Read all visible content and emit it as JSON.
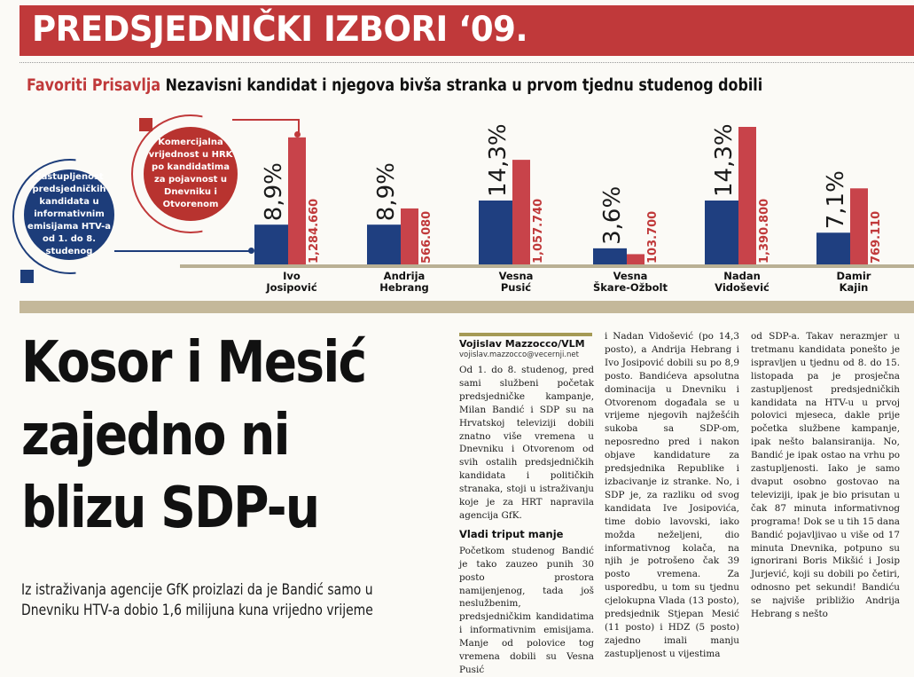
{
  "banner": {
    "title": "PREDSJEDNIČKI IZBORI ‘09."
  },
  "subhead": {
    "kicker": "Favoriti Prisavlja",
    "text": "Nezavisni kandidat i njegova bivša stranka u prvom tjednu studenog dobili"
  },
  "legend": {
    "red": "Komercijalna vrijednost u HRK po kandidatima za pojavnost u Dnevniku i Otvorenom",
    "red_lines": [
      "Komercijalna",
      "vrijednost u HRK",
      "po kandidatima",
      "za pojavnost u",
      "Dnevniku i",
      "Otvorenom"
    ],
    "blue": "Zastupljenost predsjedničkih kandidata u informativnim emisijama HTV-a od 1. do 8. studenog",
    "blue_lines": [
      "Zastupljenost",
      "predsjedničkih",
      "kandidata u",
      "informativnim",
      "emisijama HTV-a",
      "od 1. do 8.",
      "studenog"
    ]
  },
  "colors": {
    "red": "#c0393a",
    "blue": "#1d3d7a",
    "bar_red": "#c8434a",
    "bar_blue": "#1f3f80"
  },
  "chart_data": {
    "type": "bar",
    "title": "",
    "categories": [
      "Ivo Josipović",
      "Andrija Hebrang",
      "Vesna Pusić",
      "Vesna Škare-Ožbolt",
      "Nadan Vidošević",
      "Damir Kajin"
    ],
    "category_lines": [
      [
        "Ivo",
        "Josipović"
      ],
      [
        "Andrija",
        "Hebrang"
      ],
      [
        "Vesna",
        "Pusić"
      ],
      [
        "Vesna",
        "Škare-Ožbolt"
      ],
      [
        "Nadan",
        "Vidošević"
      ],
      [
        "Damir",
        "Kajin"
      ]
    ],
    "series": [
      {
        "name": "Zastupljenost predsjedničkih kandidata u informativnim emisijama HTV-a od 1. do 8. studenog",
        "color": "#1f3f80",
        "values": [
          8.9,
          8.9,
          14.3,
          3.6,
          14.3,
          7.1
        ],
        "labels": [
          "8,9%",
          "8,9%",
          "14,3%",
          "3,6%",
          "14,3%",
          "7,1%"
        ]
      },
      {
        "name": "Komercijalna vrijednost u HRK po kandidatima za pojavnost u Dnevniku i Otvorenom",
        "color": "#c8434a",
        "values": [
          1284660,
          566080,
          1057740,
          103700,
          1390800,
          769110
        ],
        "labels": [
          "1,284.660",
          "566.080",
          "1,057.740",
          "103.700",
          "1,390.800",
          "769.110"
        ]
      }
    ],
    "xlabel": "",
    "ylabel": "",
    "ylim_percent": [
      0,
      14.3
    ],
    "ylim_hrk": [
      0,
      1390800
    ]
  },
  "article": {
    "headline_lines": [
      "Kosor i Mesić",
      "zajedno ni",
      "blizu SDP-u"
    ],
    "lead": "Iz istraživanja agencije GfK proizlazi da je Bandić samo u Dnevniku HTV-a dobio 1,6 milijuna kuna vrijedno vrijeme",
    "byline": "Vojislav Mazzocco/VLM",
    "email": "vojislav.mazzocco@vecernji.net",
    "col1_p1": "Od 1. do 8. studenog, pred sami službeni početak predsjedničke kampanje, Milan Bandić i SDP su na Hrvatskoj televiziji dobili znatno više vremena u Dnevniku i Otvorenom od svih ostalih predsjedničkih kandidata i političkih stranaka, stoji u istraživanju koje je za HRT napravila agencija GfK.",
    "subsection": "Vladi triput manje",
    "col1_p2": "Početkom studenog Bandić je tako zauzeo punih 30 posto prostora namijenjenog, tada još neslužbenim, predsjedničkim kandidatima i informativnim emisijama. Manje od polovice tog vremena dobili su Vesna Pusić",
    "col2": "i Nadan Vidošević (po 14,3 posto), a Andrija Hebrang i Ivo Josipović dobili su po 8,9 posto. Bandićeva apsolutna dominacija u Dnevniku i Otvorenom događala se u vrijeme njegovih najžešćih sukoba sa SDP-om, neposredno pred i nakon objave kandidature za predsjednika Republike i izbacivanje iz stranke. No, i SDP je, za razliku od svog kandidata Ive Josipovića, time dobio lavovski, iako možda neželjeni, dio informativnog kolača, na njih je potrošeno čak 39 posto vremena. Za usporedbu, u tom su tjednu cjelokupna Vlada (13 posto), predsjednik Stjepan Mesić (11 posto) i HDZ (5 posto) zajedno imali manju zastupljenost u vijestima",
    "col3": "od SDP-a. Takav nerazmjer u tretmanu kandidata ponešto je ispravljen u tjednu od 8. do 15. listopada pa je prosječna zastupljenost predsjedničkih kandidata na HTV-u u prvoj polovici mjeseca, dakle prije početka službene kampanje, ipak nešto balansiranija. No, Bandić je ipak ostao na vrhu po zastupljenosti. Iako je samo dvaput osobno gostovao na televiziji, ipak je bio prisutan u čak 87 minuta informativnog programa! Dok se u tih 15 dana Bandić pojavljivao u više od 17 minuta Dnevnika, potpuno su ignorirani Boris Mikšić i Josip Jurjević, koji su dobili po četiri, odnosno pet sekundi! Bandiću se najviše približio Andrija Hebrang s nešto"
  }
}
